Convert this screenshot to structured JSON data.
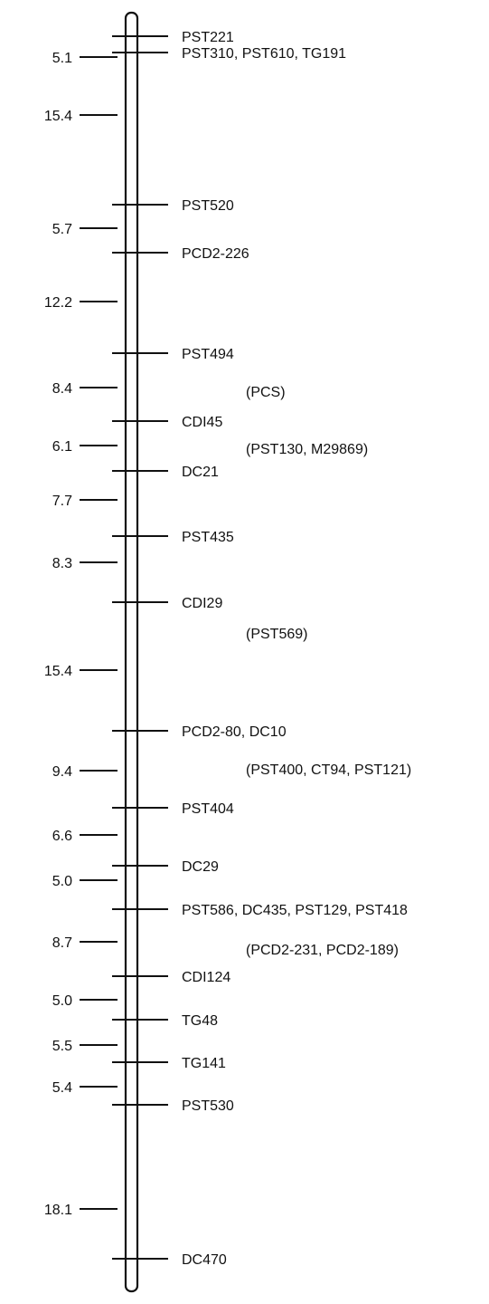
{
  "distances": [
    "5.1",
    "15.4",
    "5.7",
    "12.2",
    "8.4",
    "6.1",
    "7.7",
    "8.3",
    "15.4",
    "9.4",
    "6.6",
    "5.0",
    "8.7",
    "5.0",
    "5.5",
    "5.4",
    "18.1"
  ],
  "markers": [
    "PST221",
    "PST310, PST610, TG191",
    "PST520",
    "PCD2-226",
    "PST494",
    "CDI45",
    "DC21",
    "PST435",
    "CDI29",
    "PCD2-80, DC10",
    "PST404",
    "DC29",
    "PST586, DC435, PST129, PST418",
    "CDI124",
    "TG48",
    "TG141",
    "PST530",
    "DC470"
  ],
  "groups": [
    "(PCS)",
    "(PST130, M29869)",
    "(PST569)",
    "(PST400, CT94, PST121)",
    "(PCD2-231, PCD2-189)"
  ]
}
